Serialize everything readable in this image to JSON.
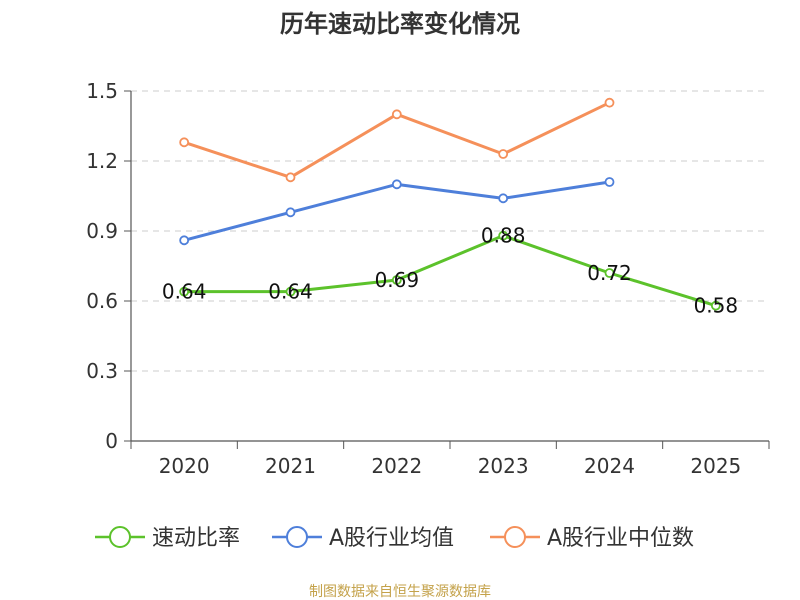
{
  "chart_data": {
    "type": "line",
    "title": "历年速动比率变化情况",
    "categories": [
      "2020",
      "2021",
      "2022",
      "2023",
      "2024",
      "2025"
    ],
    "ylim": [
      0,
      1.5
    ],
    "yticks": [
      "0",
      "0.3",
      "0.6",
      "0.9",
      "1.2",
      "1.5"
    ],
    "grid": true,
    "legend_position": "bottom",
    "series": [
      {
        "name": "速动比率",
        "color": "#5cc22b",
        "values": [
          0.64,
          0.64,
          0.69,
          0.88,
          0.72,
          0.58
        ],
        "labels": [
          "0.64",
          "0.64",
          "0.69",
          "0.88",
          "0.72",
          "0.58"
        ]
      },
      {
        "name": "A股行业均值",
        "color": "#4e7fda",
        "values": [
          0.86,
          0.98,
          1.1,
          1.04,
          1.11,
          null
        ]
      },
      {
        "name": "A股行业中位数",
        "color": "#f5905a",
        "values": [
          1.28,
          1.13,
          1.4,
          1.23,
          1.45,
          null
        ]
      }
    ]
  },
  "source": {
    "text": "制图数据来自恒生聚源数据库",
    "color": "#c4a24a"
  }
}
